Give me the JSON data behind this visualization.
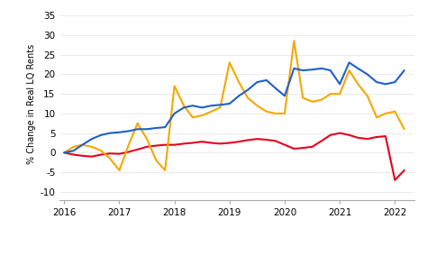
{
  "title": "",
  "ylabel": "% Change in Real LQ Rents",
  "ylim": [
    -12,
    37
  ],
  "yticks": [
    -10,
    -5,
    0,
    5,
    10,
    15,
    20,
    25,
    30,
    35
  ],
  "xlim": [
    2015.92,
    2022.35
  ],
  "xticks": [
    2016,
    2017,
    2018,
    2019,
    2020,
    2021,
    2022
  ],
  "background_color": "#ffffff",
  "grid_color": "#e8e8e8",
  "colors": {
    "Auckland": "#e8001c",
    "Wellington": "#f5a800",
    "NZ": "#1f5fc8"
  },
  "Auckland": {
    "x": [
      2016.0,
      2016.17,
      2016.33,
      2016.5,
      2016.67,
      2016.83,
      2017.0,
      2017.17,
      2017.33,
      2017.5,
      2017.67,
      2017.83,
      2018.0,
      2018.17,
      2018.33,
      2018.5,
      2018.67,
      2018.83,
      2019.0,
      2019.17,
      2019.33,
      2019.5,
      2019.67,
      2019.83,
      2020.0,
      2020.17,
      2020.33,
      2020.5,
      2020.67,
      2020.83,
      2021.0,
      2021.17,
      2021.33,
      2021.5,
      2021.67,
      2021.83,
      2022.0,
      2022.17
    ],
    "y": [
      0.0,
      -0.5,
      -0.8,
      -1.0,
      -0.5,
      -0.2,
      -0.3,
      0.2,
      0.8,
      1.5,
      1.8,
      2.0,
      2.0,
      2.3,
      2.5,
      2.8,
      2.5,
      2.3,
      2.5,
      2.8,
      3.2,
      3.5,
      3.3,
      3.0,
      2.0,
      1.0,
      1.2,
      1.5,
      3.0,
      4.5,
      5.0,
      4.5,
      3.8,
      3.5,
      4.0,
      4.2,
      -7.0,
      -4.5
    ]
  },
  "Wellington": {
    "x": [
      2016.0,
      2016.17,
      2016.33,
      2016.5,
      2016.67,
      2016.83,
      2017.0,
      2017.17,
      2017.33,
      2017.5,
      2017.67,
      2017.83,
      2018.0,
      2018.17,
      2018.33,
      2018.5,
      2018.67,
      2018.83,
      2019.0,
      2019.17,
      2019.33,
      2019.5,
      2019.67,
      2019.83,
      2020.0,
      2020.17,
      2020.33,
      2020.5,
      2020.67,
      2020.83,
      2021.0,
      2021.17,
      2021.33,
      2021.5,
      2021.67,
      2021.83,
      2022.0,
      2022.17
    ],
    "y": [
      0.0,
      1.5,
      2.0,
      1.5,
      0.5,
      -1.5,
      -4.5,
      2.0,
      7.5,
      3.5,
      -2.0,
      -4.5,
      17.0,
      12.0,
      9.0,
      9.5,
      10.5,
      11.5,
      23.0,
      18.0,
      14.0,
      12.0,
      10.5,
      10.0,
      10.0,
      28.5,
      14.0,
      13.0,
      13.5,
      15.0,
      15.0,
      21.0,
      17.5,
      14.5,
      9.0,
      10.0,
      10.5,
      6.0
    ]
  },
  "NZ": {
    "x": [
      2016.0,
      2016.17,
      2016.33,
      2016.5,
      2016.67,
      2016.83,
      2017.0,
      2017.17,
      2017.33,
      2017.5,
      2017.67,
      2017.83,
      2018.0,
      2018.17,
      2018.33,
      2018.5,
      2018.67,
      2018.83,
      2019.0,
      2019.17,
      2019.33,
      2019.5,
      2019.67,
      2019.83,
      2020.0,
      2020.17,
      2020.33,
      2020.5,
      2020.67,
      2020.83,
      2021.0,
      2021.17,
      2021.33,
      2021.5,
      2021.67,
      2021.83,
      2022.0,
      2022.17
    ],
    "y": [
      0.0,
      0.5,
      2.0,
      3.5,
      4.5,
      5.0,
      5.2,
      5.5,
      6.0,
      6.0,
      6.3,
      6.5,
      10.0,
      11.5,
      12.0,
      11.5,
      12.0,
      12.2,
      12.5,
      14.5,
      16.0,
      18.0,
      18.5,
      16.5,
      14.5,
      21.5,
      21.0,
      21.2,
      21.5,
      21.0,
      17.5,
      23.0,
      21.5,
      20.0,
      18.0,
      17.5,
      18.0,
      21.0
    ]
  }
}
